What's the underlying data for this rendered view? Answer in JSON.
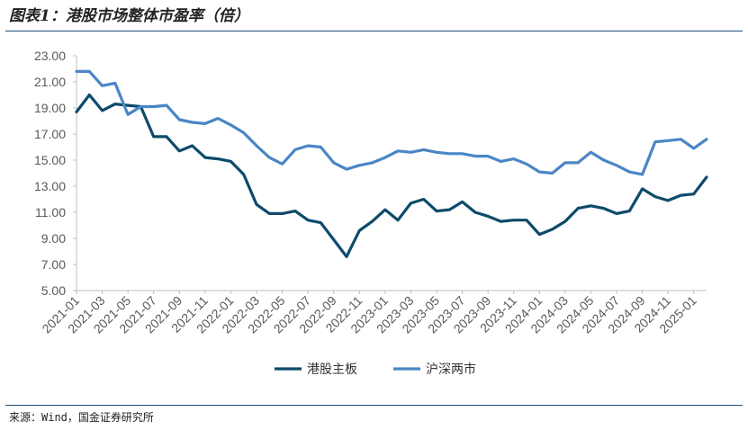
{
  "title": "图表1：港股市场整体市盈率（倍）",
  "source": "来源：Wind，国金证券研究所",
  "colors": {
    "hk": "#0d4a6b",
    "ashare": "#4a86c5",
    "axis": "#bfbfbf",
    "rule": "#1f4e79"
  },
  "chart_data": {
    "type": "line",
    "title": "港股市场整体市盈率（倍）",
    "ylim": [
      5,
      23
    ],
    "yticks": [
      "5.00",
      "7.00",
      "9.00",
      "11.00",
      "13.00",
      "15.00",
      "17.00",
      "19.00",
      "21.00",
      "23.00"
    ],
    "xtick_labels": [
      "2021-01",
      "2021-03",
      "2021-05",
      "2021-07",
      "2021-09",
      "2021-11",
      "2022-01",
      "2022-03",
      "2022-05",
      "2022-07",
      "2022-09",
      "2022-11",
      "2023-01",
      "2023-03",
      "2023-05",
      "2023-07",
      "2023-09",
      "2023-11",
      "2024-01",
      "2024-03",
      "2024-05",
      "2024-07",
      "2024-09",
      "2024-11",
      "2025-01"
    ],
    "legend_position": "bottom",
    "x": [
      "2021-01",
      "2021-02",
      "2021-03",
      "2021-04",
      "2021-05",
      "2021-06",
      "2021-07",
      "2021-08",
      "2021-09",
      "2021-10",
      "2021-11",
      "2021-12",
      "2022-01",
      "2022-02",
      "2022-03",
      "2022-04",
      "2022-05",
      "2022-06",
      "2022-07",
      "2022-08",
      "2022-09",
      "2022-10",
      "2022-11",
      "2022-12",
      "2023-01",
      "2023-02",
      "2023-03",
      "2023-04",
      "2023-05",
      "2023-06",
      "2023-07",
      "2023-08",
      "2023-09",
      "2023-10",
      "2023-11",
      "2023-12",
      "2024-01",
      "2024-02",
      "2024-03",
      "2024-04",
      "2024-05",
      "2024-06",
      "2024-07",
      "2024-08",
      "2024-09",
      "2024-10",
      "2024-11",
      "2024-12",
      "2025-01",
      "2025-02"
    ],
    "series": [
      {
        "name": "港股主板",
        "color": "#0d4a6b",
        "values": [
          18.7,
          20.0,
          18.8,
          19.3,
          19.2,
          19.1,
          16.8,
          16.8,
          15.7,
          16.1,
          15.2,
          15.1,
          14.9,
          13.9,
          11.6,
          10.9,
          10.9,
          11.1,
          10.4,
          10.2,
          8.9,
          7.6,
          9.6,
          10.3,
          11.2,
          10.4,
          11.7,
          12.0,
          11.1,
          11.2,
          11.8,
          11.0,
          10.7,
          10.3,
          10.4,
          10.4,
          9.3,
          9.7,
          10.3,
          11.3,
          11.5,
          11.3,
          10.9,
          11.1,
          12.8,
          12.2,
          11.9,
          12.3,
          12.4,
          13.7
        ]
      },
      {
        "name": "沪深两市",
        "color": "#4a86c5",
        "values": [
          21.8,
          21.8,
          20.7,
          20.9,
          18.5,
          19.1,
          19.1,
          19.2,
          18.1,
          17.9,
          17.8,
          18.2,
          17.7,
          17.1,
          16.1,
          15.2,
          14.7,
          15.8,
          16.1,
          16.0,
          14.8,
          14.3,
          14.6,
          14.8,
          15.2,
          15.7,
          15.6,
          15.8,
          15.6,
          15.5,
          15.5,
          15.3,
          15.3,
          14.9,
          15.1,
          14.7,
          14.1,
          14.0,
          14.8,
          14.8,
          15.6,
          15.0,
          14.6,
          14.1,
          13.9,
          16.4,
          16.5,
          16.6,
          15.9,
          16.6
        ]
      }
    ]
  }
}
